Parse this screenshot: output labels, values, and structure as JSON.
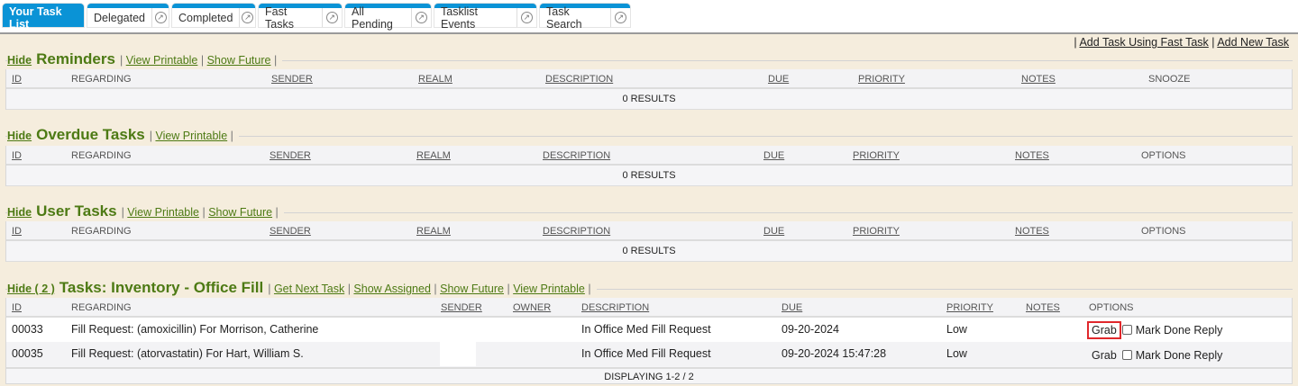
{
  "tabs": [
    {
      "label": "Your Task List",
      "active": true
    },
    {
      "label": "Delegated"
    },
    {
      "label": "Completed"
    },
    {
      "label": "Fast Tasks"
    },
    {
      "label": "All Pending"
    },
    {
      "label": "Tasklist Events"
    },
    {
      "label": "Task Search"
    }
  ],
  "top_links": {
    "fast_task": "Add Task Using Fast Task",
    "new_task": "Add New Task"
  },
  "sections": {
    "reminders": {
      "hide": "Hide",
      "title": "Reminders",
      "links": [
        "View Printable",
        "Show Future"
      ],
      "columns": [
        "ID",
        "REGARDING",
        "SENDER",
        "REALM",
        "DESCRIPTION",
        "DUE",
        "PRIORITY",
        "NOTES",
        "SNOOZE"
      ],
      "results": "0 RESULTS"
    },
    "overdue": {
      "hide": "Hide",
      "title": "Overdue Tasks",
      "links": [
        "View Printable"
      ],
      "columns": [
        "ID",
        "REGARDING",
        "SENDER",
        "REALM",
        "DESCRIPTION",
        "DUE",
        "PRIORITY",
        "NOTES",
        "OPTIONS"
      ],
      "results": "0 RESULTS"
    },
    "user": {
      "hide": "Hide",
      "title": "User Tasks",
      "links": [
        "View Printable",
        "Show Future"
      ],
      "columns": [
        "ID",
        "REGARDING",
        "SENDER",
        "REALM",
        "DESCRIPTION",
        "DUE",
        "PRIORITY",
        "NOTES",
        "OPTIONS"
      ],
      "results": "0 RESULTS"
    },
    "inventory": {
      "hide": "Hide ( 2 )",
      "title": "Tasks: Inventory - Office Fill",
      "links": [
        "Get Next Task",
        "Show Assigned",
        "Show Future",
        "View Printable"
      ],
      "columns": [
        "ID",
        "REGARDING",
        "SENDER",
        "OWNER",
        "DESCRIPTION",
        "DUE",
        "PRIORITY",
        "NOTES",
        "OPTIONS"
      ],
      "rows": [
        {
          "id": "00033",
          "regarding": "Fill Request: (amoxicillin) For Morrison, Catherine",
          "sender": "",
          "owner": "",
          "description": "In Office Med Fill Request",
          "due": "09-20-2024",
          "priority": "Low",
          "notes": ""
        },
        {
          "id": "00035",
          "regarding": "Fill Request: (atorvastatin) For Hart, William S.",
          "sender": "",
          "owner": "",
          "description": "In Office Med Fill Request",
          "due": "09-20-2024 15:47:28",
          "priority": "Low",
          "notes": ""
        }
      ],
      "options": {
        "grab": "Grab",
        "mark_done": "Mark Done",
        "reply": "Reply"
      },
      "footer": "DISPLAYING 1-2 / 2"
    }
  },
  "colors": {
    "accent": "#0a93d6",
    "section_title": "#4d7a14",
    "highlight": "#e0282c",
    "background": "#f5eddd"
  }
}
